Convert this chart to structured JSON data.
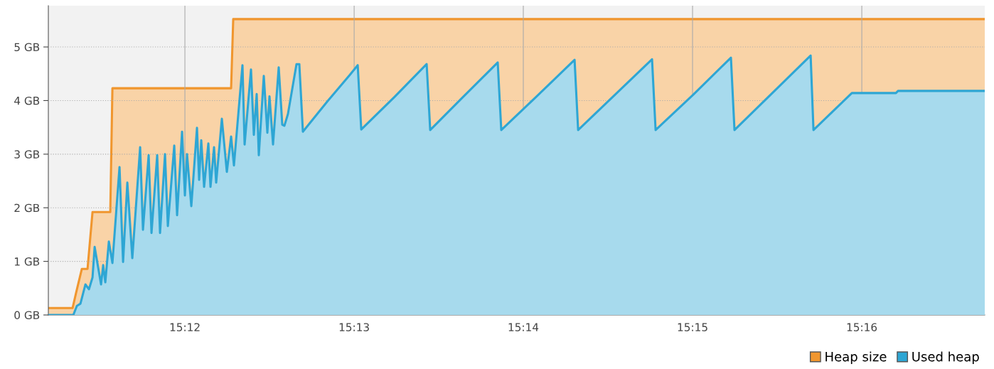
{
  "chart_data": {
    "type": "area",
    "xlim": [
      15.18655,
      15.27878
    ],
    "ylim": [
      0,
      5.77
    ],
    "xticks": [
      {
        "value": 15.2,
        "label": "15:12"
      },
      {
        "value": 15.21667,
        "label": "15:13"
      },
      {
        "value": 15.23333,
        "label": "15:14"
      },
      {
        "value": 15.25,
        "label": "15:15"
      },
      {
        "value": 15.26667,
        "label": "15:16"
      }
    ],
    "yticks": [
      {
        "value": 0,
        "label": "0 GB"
      },
      {
        "value": 1,
        "label": "1 GB"
      },
      {
        "value": 2,
        "label": "2 GB"
      },
      {
        "value": 3,
        "label": "3 GB"
      },
      {
        "value": 4,
        "label": "4 GB"
      },
      {
        "value": 5,
        "label": "5 GB"
      }
    ],
    "grid": true,
    "legend": "bottom right",
    "marker": "none",
    "line_style": "solid",
    "series": [
      {
        "name": "Heap size",
        "color": "#f0962e",
        "x": [
          15.18655,
          15.18894,
          15.18929,
          15.18985,
          15.19041,
          15.1909,
          15.19265,
          15.19286,
          15.20455,
          15.20476,
          15.27878
        ],
        "values": [
          0.13,
          0.13,
          0.42,
          0.86,
          0.86,
          1.92,
          1.92,
          4.23,
          4.23,
          5.52,
          5.52
        ]
      },
      {
        "name": "Used heap",
        "color": "#2ea6d4",
        "x": [
          15.18655,
          15.18901,
          15.18936,
          15.18971,
          15.1902,
          15.19055,
          15.1909,
          15.19111,
          15.19174,
          15.19195,
          15.19216,
          15.19251,
          15.19286,
          15.19356,
          15.19391,
          15.19433,
          15.19482,
          15.19559,
          15.19587,
          15.19643,
          15.19671,
          15.19727,
          15.19755,
          15.19804,
          15.19832,
          15.19895,
          15.19923,
          15.19972,
          15.2,
          15.20021,
          15.20063,
          15.20119,
          15.2014,
          15.20161,
          15.20189,
          15.20231,
          15.20252,
          15.20287,
          15.20308,
          15.20364,
          15.20413,
          15.20455,
          15.20483,
          15.20567,
          15.20588,
          15.20651,
          15.20679,
          15.20707,
          15.20728,
          15.20777,
          15.20812,
          15.20833,
          15.20868,
          15.20924,
          15.20959,
          15.2098,
          15.21015,
          15.21099,
          15.21127,
          15.21162,
          15.21401,
          15.21625,
          15.21702,
          15.21737,
          15.22066,
          15.22381,
          15.22416,
          15.22731,
          15.23081,
          15.23116,
          15.23466,
          15.23838,
          15.23873,
          15.24237,
          15.24601,
          15.24636,
          15.25007,
          15.25378,
          15.25413,
          15.25791,
          15.26163,
          15.26191,
          15.26569,
          15.27003,
          15.27024,
          15.27878
        ],
        "values": [
          0,
          0,
          0.17,
          0.21,
          0.57,
          0.48,
          0.7,
          1.27,
          0.57,
          0.93,
          0.61,
          1.37,
          0.97,
          2.76,
          0.99,
          2.47,
          1.06,
          3.13,
          1.59,
          2.98,
          1.53,
          2.98,
          1.53,
          3.0,
          1.66,
          3.16,
          1.86,
          3.42,
          2.23,
          3.0,
          2.03,
          3.49,
          2.52,
          3.26,
          2.39,
          3.2,
          2.39,
          3.13,
          2.47,
          3.66,
          2.67,
          3.33,
          2.79,
          4.66,
          3.18,
          4.58,
          3.36,
          4.12,
          2.98,
          4.46,
          3.4,
          4.08,
          3.18,
          4.62,
          3.55,
          3.53,
          3.75,
          4.68,
          4.68,
          3.42,
          3.98,
          4.48,
          4.66,
          3.46,
          4.07,
          4.68,
          3.45,
          4.05,
          4.71,
          3.45,
          4.08,
          4.76,
          3.45,
          4.11,
          4.77,
          3.45,
          4.11,
          4.8,
          3.45,
          4.15,
          4.84,
          3.45,
          4.14,
          4.14,
          4.18,
          4.18
        ]
      }
    ]
  }
}
